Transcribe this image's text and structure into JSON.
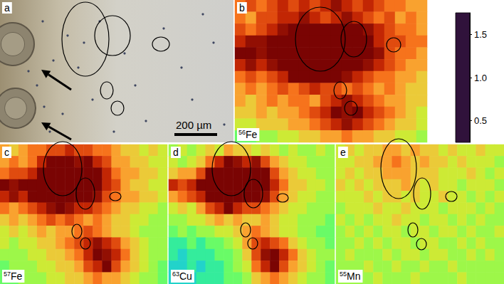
{
  "chart_data": [
    {
      "type": "image",
      "panel": "a",
      "scale_bar": "200 µm"
    },
    {
      "type": "heatmap",
      "panel": "b",
      "isotope": "56",
      "element": "Fe",
      "tick_labels": false,
      "cells": [
        [
          1.4,
          1.5,
          1.4,
          1.5,
          1.6,
          1.5,
          1.6,
          1.5,
          1.6,
          1.7,
          1.6,
          1.5,
          1.6,
          1.5,
          1.4,
          1.4,
          1.3,
          1.3
        ],
        [
          1.4,
          1.3,
          1.5,
          1.5,
          1.6,
          1.6,
          1.7,
          1.6,
          1.5,
          1.6,
          1.7,
          1.6,
          1.5,
          1.4,
          1.5,
          1.3,
          1.4,
          1.3
        ],
        [
          1.5,
          1.4,
          1.5,
          1.6,
          1.7,
          1.75,
          1.75,
          1.75,
          1.75,
          1.75,
          1.75,
          1.75,
          1.7,
          1.6,
          1.5,
          1.4,
          1.4,
          1.3
        ],
        [
          1.6,
          1.7,
          1.7,
          1.75,
          1.75,
          1.75,
          1.75,
          1.75,
          1.75,
          1.75,
          1.75,
          1.75,
          1.75,
          1.6,
          1.5,
          1.5,
          1.4,
          1.4
        ],
        [
          1.75,
          1.75,
          1.7,
          1.75,
          1.75,
          1.75,
          1.75,
          1.75,
          1.75,
          1.75,
          1.75,
          1.75,
          1.75,
          1.7,
          1.5,
          1.4,
          1.4,
          1.3
        ],
        [
          1.6,
          1.7,
          1.6,
          1.7,
          1.75,
          1.75,
          1.75,
          1.75,
          1.75,
          1.75,
          1.75,
          1.75,
          1.7,
          1.6,
          1.5,
          1.4,
          1.3,
          1.3
        ],
        [
          1.4,
          1.5,
          1.4,
          1.5,
          1.6,
          1.75,
          1.75,
          1.75,
          1.75,
          1.75,
          1.7,
          1.6,
          1.5,
          1.4,
          1.4,
          1.3,
          1.3,
          1.2
        ],
        [
          1.3,
          1.4,
          1.3,
          1.4,
          1.5,
          1.4,
          1.5,
          1.6,
          1.5,
          1.5,
          1.4,
          1.5,
          1.4,
          1.3,
          1.4,
          1.3,
          1.2,
          1.2
        ],
        [
          1.3,
          1.2,
          1.3,
          1.4,
          1.3,
          1.4,
          1.4,
          1.3,
          1.5,
          1.6,
          1.7,
          1.6,
          1.5,
          1.4,
          1.3,
          1.3,
          1.2,
          1.2
        ],
        [
          1.2,
          1.2,
          1.3,
          1.2,
          1.3,
          1.3,
          1.4,
          1.5,
          1.6,
          1.75,
          1.7,
          1.75,
          1.6,
          1.5,
          1.4,
          1.3,
          1.2,
          1.1
        ],
        [
          1.1,
          1.1,
          1.2,
          1.2,
          1.2,
          1.3,
          1.3,
          1.4,
          1.5,
          1.6,
          1.7,
          1.6,
          1.5,
          1.4,
          1.3,
          1.2,
          1.2,
          1.1
        ],
        [
          0.9,
          0.9,
          1.0,
          1.0,
          1.1,
          1.1,
          1.2,
          1.2,
          1.3,
          1.3,
          1.4,
          1.3,
          1.3,
          1.2,
          1.2,
          1.1,
          1.1,
          1.0
        ]
      ]
    },
    {
      "type": "heatmap",
      "panel": "c",
      "isotope": "57",
      "element": "Fe",
      "tick_labels": false,
      "cells": [
        [
          1.3,
          1.2,
          1.3,
          1.4,
          1.4,
          1.5,
          1.5,
          1.6,
          1.5,
          1.5,
          1.4,
          1.4,
          1.3,
          1.2,
          1.2,
          1.1,
          1.2,
          1.1
        ],
        [
          1.3,
          1.4,
          1.3,
          1.4,
          1.6,
          1.75,
          1.75,
          1.75,
          1.7,
          1.75,
          1.6,
          1.5,
          1.3,
          1.3,
          1.2,
          1.2,
          1.1,
          1.1
        ],
        [
          1.4,
          1.5,
          1.5,
          1.6,
          1.75,
          1.75,
          1.75,
          1.75,
          1.75,
          1.75,
          1.75,
          1.6,
          1.4,
          1.3,
          1.3,
          1.2,
          1.2,
          1.1
        ],
        [
          1.75,
          1.7,
          1.75,
          1.75,
          1.75,
          1.75,
          1.75,
          1.75,
          1.75,
          1.75,
          1.75,
          1.6,
          1.5,
          1.3,
          1.2,
          1.2,
          1.1,
          1.1
        ],
        [
          1.6,
          1.7,
          1.6,
          1.75,
          1.75,
          1.75,
          1.75,
          1.75,
          1.75,
          1.75,
          1.7,
          1.5,
          1.4,
          1.3,
          1.3,
          1.2,
          1.2,
          1.1
        ],
        [
          1.4,
          1.3,
          1.4,
          1.5,
          1.6,
          1.7,
          1.75,
          1.7,
          1.6,
          1.6,
          1.5,
          1.4,
          1.3,
          1.2,
          1.2,
          1.1,
          1.1,
          1.0
        ],
        [
          1.2,
          1.3,
          1.2,
          1.3,
          1.4,
          1.5,
          1.4,
          1.5,
          1.4,
          1.3,
          1.4,
          1.3,
          1.2,
          1.2,
          1.1,
          1.1,
          1.0,
          1.0
        ],
        [
          1.1,
          1.2,
          1.1,
          1.2,
          1.3,
          1.2,
          1.3,
          1.3,
          1.4,
          1.5,
          1.4,
          1.3,
          1.2,
          1.2,
          1.1,
          1.0,
          1.0,
          1.0
        ],
        [
          1.1,
          1.0,
          1.1,
          1.1,
          1.2,
          1.2,
          1.3,
          1.4,
          1.5,
          1.6,
          1.7,
          1.6,
          1.5,
          1.3,
          1.2,
          1.1,
          1.0,
          1.0
        ],
        [
          1.0,
          1.0,
          1.0,
          1.1,
          1.1,
          1.2,
          1.2,
          1.3,
          1.4,
          1.6,
          1.75,
          1.7,
          1.6,
          1.4,
          1.2,
          1.1,
          1.0,
          1.0
        ],
        [
          0.9,
          1.0,
          1.0,
          1.0,
          1.1,
          1.1,
          1.2,
          1.2,
          1.3,
          1.5,
          1.6,
          1.75,
          1.5,
          1.3,
          1.2,
          1.1,
          1.0,
          0.9
        ],
        [
          0.9,
          0.9,
          1.0,
          1.0,
          1.0,
          1.1,
          1.1,
          1.2,
          1.2,
          1.3,
          1.4,
          1.3,
          1.3,
          1.2,
          1.1,
          1.0,
          1.0,
          0.9
        ]
      ]
    },
    {
      "type": "heatmap",
      "panel": "d",
      "isotope": "63",
      "element": "Cu",
      "tick_labels": false,
      "cells": [
        [
          1.0,
          1.1,
          1.0,
          1.1,
          1.2,
          1.1,
          1.3,
          1.2,
          1.2,
          1.1,
          1.2,
          1.1,
          1.0,
          1.1,
          1.0,
          1.0,
          1.1,
          1.0
        ],
        [
          1.1,
          1.0,
          1.1,
          1.2,
          1.4,
          1.6,
          1.75,
          1.7,
          1.6,
          1.7,
          1.5,
          1.3,
          1.2,
          1.1,
          1.1,
          1.0,
          1.0,
          1.0
        ],
        [
          1.2,
          1.3,
          1.3,
          1.5,
          1.75,
          1.75,
          1.75,
          1.75,
          1.75,
          1.75,
          1.75,
          1.5,
          1.3,
          1.2,
          1.1,
          1.1,
          1.0,
          1.0
        ],
        [
          1.6,
          1.5,
          1.6,
          1.75,
          1.75,
          1.75,
          1.75,
          1.75,
          1.75,
          1.75,
          1.75,
          1.6,
          1.4,
          1.2,
          1.2,
          1.1,
          1.1,
          1.0
        ],
        [
          1.3,
          1.4,
          1.5,
          1.6,
          1.75,
          1.75,
          1.75,
          1.75,
          1.75,
          1.75,
          1.7,
          1.5,
          1.3,
          1.2,
          1.1,
          1.1,
          1.0,
          1.0
        ],
        [
          1.1,
          1.2,
          1.1,
          1.3,
          1.5,
          1.6,
          1.75,
          1.6,
          1.5,
          1.5,
          1.4,
          1.3,
          1.2,
          1.1,
          1.1,
          1.0,
          1.0,
          1.0
        ],
        [
          1.0,
          1.0,
          1.1,
          1.1,
          1.2,
          1.3,
          1.2,
          1.3,
          1.2,
          1.2,
          1.3,
          1.2,
          1.1,
          1.1,
          1.0,
          1.0,
          1.0,
          0.9
        ],
        [
          0.9,
          1.0,
          0.9,
          1.0,
          1.0,
          1.1,
          1.1,
          1.2,
          1.3,
          1.4,
          1.3,
          1.2,
          1.1,
          1.1,
          1.0,
          1.0,
          0.9,
          0.9
        ],
        [
          0.8,
          0.8,
          0.9,
          0.8,
          0.9,
          0.9,
          1.0,
          1.1,
          1.3,
          1.5,
          1.6,
          1.5,
          1.4,
          1.2,
          1.1,
          1.0,
          1.0,
          0.9
        ],
        [
          0.8,
          0.7,
          0.8,
          0.8,
          0.8,
          0.9,
          0.9,
          1.0,
          1.2,
          1.5,
          1.7,
          1.75,
          1.6,
          1.4,
          1.2,
          1.1,
          1.0,
          1.0
        ],
        [
          0.7,
          0.7,
          0.8,
          0.7,
          0.8,
          0.8,
          0.9,
          1.0,
          1.1,
          1.4,
          1.6,
          1.75,
          1.5,
          1.3,
          1.2,
          1.1,
          1.0,
          0.9
        ],
        [
          0.7,
          0.7,
          0.7,
          0.8,
          0.8,
          0.8,
          0.9,
          0.9,
          1.0,
          1.2,
          1.3,
          1.4,
          1.3,
          1.2,
          1.1,
          1.0,
          1.0,
          0.9
        ]
      ]
    },
    {
      "type": "heatmap",
      "panel": "e",
      "isotope": "55",
      "element": "Mn",
      "tick_labels": false,
      "cells": [
        [
          1.1,
          1.2,
          1.1,
          1.2,
          1.2,
          1.3,
          1.3,
          1.2,
          1.3,
          1.2,
          1.2,
          1.1,
          1.2,
          1.1,
          1.1,
          1.2,
          1.1,
          1.1
        ],
        [
          1.1,
          1.1,
          1.2,
          1.2,
          1.3,
          1.3,
          1.4,
          1.3,
          1.2,
          1.3,
          1.2,
          1.2,
          1.1,
          1.2,
          1.1,
          1.1,
          1.1,
          1.0
        ],
        [
          1.1,
          1.2,
          1.1,
          1.2,
          1.2,
          1.3,
          1.3,
          1.3,
          1.2,
          1.2,
          1.2,
          1.1,
          1.1,
          1.1,
          1.2,
          1.1,
          1.0,
          1.1
        ],
        [
          1.2,
          1.1,
          1.2,
          1.1,
          1.2,
          1.2,
          1.2,
          1.3,
          1.2,
          1.1,
          1.2,
          1.1,
          1.1,
          1.0,
          1.1,
          1.1,
          1.1,
          1.0
        ],
        [
          1.1,
          1.1,
          1.1,
          1.2,
          1.1,
          1.2,
          1.2,
          1.1,
          1.2,
          1.1,
          1.1,
          1.2,
          1.1,
          1.1,
          1.0,
          1.1,
          1.0,
          1.1
        ],
        [
          1.0,
          1.1,
          1.1,
          1.1,
          1.2,
          1.1,
          1.1,
          1.2,
          1.1,
          1.1,
          1.1,
          1.0,
          1.1,
          1.1,
          1.1,
          1.0,
          1.1,
          1.0
        ],
        [
          1.1,
          1.0,
          1.1,
          1.0,
          1.1,
          1.1,
          1.2,
          1.1,
          1.1,
          1.0,
          1.1,
          1.1,
          1.0,
          1.1,
          1.0,
          1.1,
          1.0,
          1.0
        ],
        [
          1.0,
          1.1,
          1.0,
          1.1,
          1.0,
          1.1,
          1.1,
          1.0,
          1.1,
          1.1,
          1.0,
          1.1,
          1.1,
          1.0,
          1.1,
          1.0,
          1.0,
          1.1
        ],
        [
          1.0,
          1.0,
          1.1,
          1.0,
          1.1,
          1.0,
          1.1,
          1.1,
          1.0,
          1.1,
          1.1,
          1.0,
          1.0,
          1.1,
          1.0,
          1.1,
          1.0,
          1.0
        ],
        [
          1.0,
          1.1,
          1.0,
          1.0,
          1.0,
          1.1,
          1.0,
          1.1,
          1.1,
          1.0,
          1.1,
          1.1,
          1.0,
          1.0,
          1.1,
          1.0,
          1.1,
          1.0
        ],
        [
          1.0,
          1.0,
          1.0,
          1.1,
          1.0,
          1.0,
          1.1,
          1.0,
          1.0,
          1.1,
          1.0,
          1.0,
          1.1,
          1.0,
          1.0,
          1.0,
          1.0,
          1.0
        ],
        [
          1.0,
          1.0,
          1.0,
          1.0,
          1.1,
          1.0,
          1.0,
          1.0,
          1.1,
          1.0,
          1.0,
          1.0,
          1.0,
          1.1,
          1.0,
          1.0,
          1.0,
          1.0
        ]
      ]
    },
    {
      "type": "colorbar",
      "range": [
        0.25,
        1.75
      ],
      "ticks": [
        0.5,
        {
          "value": 1,
          "label": "1.0"
        },
        1.5
      ],
      "colors": [
        "#30123b",
        "#4662d7",
        "#36aaf9",
        "#1ae4b6",
        "#72fe5e",
        "#c8ef34",
        "#faba39",
        "#f66b19",
        "#ca2a04",
        "#7a0403"
      ]
    }
  ]
}
